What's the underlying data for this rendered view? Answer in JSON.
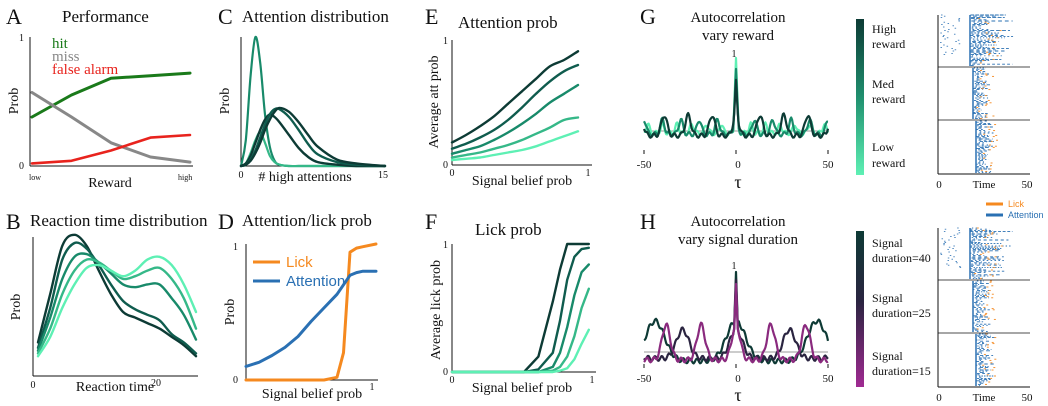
{
  "colors": {
    "hit": "#1a7a1a",
    "miss": "#888888",
    "false_alarm": "#e8231d",
    "lick": "#f5891f",
    "attention": "#2a70b3",
    "teal_ramp": [
      "#0d3b35",
      "#0f5c4e",
      "#188a6a",
      "#35b888",
      "#5ef0b4"
    ],
    "purple_ramp": [
      "#0e3a35",
      "#2a2440",
      "#8a2a7e"
    ]
  },
  "figure": {
    "panels": {
      "A": {
        "letter": "A",
        "title": "Performance",
        "xlabel": "Reward",
        "ylabel": "Prob",
        "ytick_top": "1",
        "ytick_bottom": "0",
        "xtick_left": "low",
        "xtick_right": "high"
      },
      "B": {
        "letter": "B",
        "title": "Reaction time distribution",
        "xlabel": "Reaction time",
        "ylabel": "Prob",
        "xtick_0": "0",
        "xtick_20": "20"
      },
      "C": {
        "letter": "C",
        "title": "Attention distribution",
        "xlabel": "# high attentions",
        "ylabel": "Prob",
        "xtick_0": "0",
        "xtick_15": "15"
      },
      "D": {
        "letter": "D",
        "title": "Attention/lick prob",
        "xlabel": "Signal belief prob",
        "ylabel": "Prob",
        "ytick_top": "1",
        "ytick_bottom": "0",
        "xtick_1": "1"
      },
      "E": {
        "letter": "E",
        "title": "Attention prob",
        "xlabel": "Signal belief prob",
        "ylabel": "Average att prob",
        "ytick_top": "1",
        "ytick_bottom": "0",
        "xtick_0": "0",
        "xtick_1": "1"
      },
      "F": {
        "letter": "F",
        "title": "Lick prob",
        "xlabel": "Signal belief prob",
        "ylabel": "Average lick prob",
        "ytick_top": "1",
        "ytick_bottom": "0",
        "xtick_0": "0",
        "xtick_1": "1"
      },
      "G": {
        "letter": "G",
        "title_1": "Autocorrelation",
        "title_2": "vary reward",
        "xlabel": "τ",
        "ytick_top": "1",
        "xtick_m50": "-50",
        "xtick_0": "0",
        "xtick_50": "50",
        "legend": [
          {
            "line1": "High",
            "line2": "reward"
          },
          {
            "line1": "Med",
            "line2": "reward"
          },
          {
            "line1": "Low",
            "line2": "reward"
          }
        ]
      },
      "H": {
        "letter": "H",
        "title_1": "Autocorrelation",
        "title_2": "vary signal duration",
        "xlabel": "τ",
        "ytick_top": "1",
        "xtick_m50": "-50",
        "xtick_0": "0",
        "xtick_50": "50",
        "legend": [
          {
            "line1": "Signal",
            "line2": "duration=40"
          },
          {
            "line1": "Signal",
            "line2": "duration=25"
          },
          {
            "line1": "Signal",
            "line2": "duration=15"
          }
        ]
      },
      "raster_G": {
        "xlabel": "Time",
        "xtick_0": "0",
        "xtick_50": "50"
      },
      "raster_H": {
        "xlabel": "Time",
        "xtick_0": "0",
        "xtick_50": "50",
        "legend": [
          {
            "label": "Lick"
          },
          {
            "label": "Attention"
          }
        ]
      }
    }
  },
  "chart_data": [
    {
      "panel": "A",
      "type": "line",
      "title": "Performance",
      "xlabel": "Reward",
      "ylabel": "Prob",
      "x": [
        0,
        0.25,
        0.5,
        0.75,
        1.0
      ],
      "ylim": [
        0,
        1
      ],
      "series": [
        {
          "name": "hit",
          "values": [
            0.38,
            0.55,
            0.68,
            0.7,
            0.72
          ]
        },
        {
          "name": "miss",
          "values": [
            0.57,
            0.38,
            0.18,
            0.07,
            0.03
          ]
        },
        {
          "name": "false alarm",
          "values": [
            0.02,
            0.04,
            0.12,
            0.22,
            0.24
          ]
        }
      ]
    },
    {
      "panel": "B",
      "type": "line",
      "title": "Reaction time distribution",
      "xlabel": "Reaction time",
      "ylabel": "Prob",
      "x": [
        0,
        2,
        4,
        6,
        8,
        10,
        12,
        14,
        16,
        18,
        20,
        22,
        24,
        26
      ],
      "xlim": [
        0,
        28
      ],
      "series": [
        {
          "values": [
            0.2,
            0.55,
            0.9,
            0.98,
            0.9,
            0.72,
            0.55,
            0.42,
            0.38,
            0.34,
            0.3,
            0.24,
            0.18,
            0.1
          ]
        },
        {
          "values": [
            0.16,
            0.45,
            0.8,
            0.92,
            0.88,
            0.76,
            0.62,
            0.5,
            0.44,
            0.4,
            0.36,
            0.26,
            0.2,
            0.12
          ]
        },
        {
          "values": [
            0.14,
            0.38,
            0.66,
            0.82,
            0.84,
            0.78,
            0.7,
            0.62,
            0.6,
            0.62,
            0.62,
            0.52,
            0.4,
            0.22
          ]
        },
        {
          "values": [
            0.12,
            0.3,
            0.55,
            0.72,
            0.8,
            0.78,
            0.72,
            0.66,
            0.68,
            0.72,
            0.74,
            0.66,
            0.52,
            0.3
          ]
        },
        {
          "values": [
            0.1,
            0.24,
            0.45,
            0.62,
            0.74,
            0.76,
            0.72,
            0.68,
            0.72,
            0.8,
            0.82,
            0.76,
            0.62,
            0.42
          ]
        }
      ]
    },
    {
      "panel": "C",
      "type": "line",
      "title": "Attention distribution",
      "xlabel": "# high attentions",
      "ylabel": "Prob",
      "x": [
        0,
        0.5,
        1,
        1.5,
        2,
        2.5,
        3,
        3.5,
        4,
        5,
        6,
        7,
        8,
        10,
        12,
        15
      ],
      "xlim": [
        0,
        15
      ],
      "series": [
        {
          "values": [
            0.0,
            0.2,
            0.7,
            1.0,
            0.8,
            0.4,
            0.15,
            0.04,
            0.01,
            0,
            0,
            0,
            0,
            0,
            0,
            0
          ]
        },
        {
          "values": [
            0.0,
            0.02,
            0.1,
            0.2,
            0.26,
            0.18,
            0.08,
            0.03,
            0.01,
            0,
            0,
            0,
            0,
            0,
            0,
            0
          ]
        },
        {
          "values": [
            0.0,
            0.02,
            0.08,
            0.18,
            0.28,
            0.36,
            0.4,
            0.38,
            0.34,
            0.24,
            0.14,
            0.07,
            0.03,
            0.01,
            0,
            0
          ]
        },
        {
          "values": [
            0.0,
            0.01,
            0.05,
            0.12,
            0.22,
            0.32,
            0.4,
            0.44,
            0.44,
            0.38,
            0.28,
            0.17,
            0.09,
            0.03,
            0.01,
            0
          ]
        },
        {
          "values": [
            0.0,
            0.01,
            0.04,
            0.1,
            0.18,
            0.28,
            0.36,
            0.42,
            0.45,
            0.42,
            0.34,
            0.24,
            0.15,
            0.05,
            0.02,
            0
          ]
        }
      ]
    },
    {
      "panel": "D",
      "type": "line",
      "title": "Attention/lick prob",
      "xlabel": "Signal belief prob",
      "ylabel": "Prob",
      "x": [
        0,
        0.1,
        0.2,
        0.3,
        0.4,
        0.5,
        0.6,
        0.7,
        0.75,
        0.8,
        0.85,
        0.9,
        1.0
      ],
      "ylim": [
        0,
        1
      ],
      "series": [
        {
          "name": "Lick",
          "values": [
            0,
            0,
            0,
            0,
            0,
            0,
            0,
            0.02,
            0.2,
            0.94,
            0.97,
            0.98,
            1.0
          ]
        },
        {
          "name": "Attention",
          "values": [
            0.1,
            0.13,
            0.18,
            0.24,
            0.32,
            0.43,
            0.53,
            0.63,
            0.7,
            0.77,
            0.79,
            0.8,
            0.8
          ]
        }
      ]
    },
    {
      "panel": "E",
      "type": "line",
      "title": "Attention prob",
      "xlabel": "Signal belief prob",
      "ylabel": "Average att prob",
      "x": [
        0,
        0.1,
        0.2,
        0.3,
        0.4,
        0.5,
        0.6,
        0.7,
        0.8,
        0.9
      ],
      "ylim": [
        0,
        1
      ],
      "series": [
        {
          "values": [
            0.18,
            0.24,
            0.31,
            0.39,
            0.49,
            0.59,
            0.69,
            0.79,
            0.84,
            0.91
          ]
        },
        {
          "values": [
            0.13,
            0.17,
            0.22,
            0.28,
            0.36,
            0.46,
            0.57,
            0.67,
            0.75,
            0.8
          ]
        },
        {
          "values": [
            0.09,
            0.12,
            0.15,
            0.2,
            0.26,
            0.33,
            0.41,
            0.5,
            0.57,
            0.64
          ]
        },
        {
          "values": [
            0.06,
            0.08,
            0.1,
            0.13,
            0.16,
            0.2,
            0.25,
            0.3,
            0.36,
            0.38
          ]
        },
        {
          "values": [
            0.04,
            0.05,
            0.06,
            0.08,
            0.1,
            0.12,
            0.15,
            0.19,
            0.23,
            0.27
          ]
        }
      ]
    },
    {
      "panel": "F",
      "type": "line",
      "title": "Lick prob",
      "xlabel": "Signal belief prob",
      "ylabel": "Average lick prob",
      "x": [
        0,
        0.1,
        0.2,
        0.3,
        0.4,
        0.5,
        0.6,
        0.7,
        0.75,
        0.8,
        0.85,
        0.9,
        0.95
      ],
      "ylim": [
        0,
        1
      ],
      "series": [
        {
          "values": [
            0,
            0,
            0,
            0,
            0,
            0,
            0.12,
            0.55,
            0.8,
            1.0,
            1.0,
            1.0,
            1.0
          ]
        },
        {
          "values": [
            0,
            0,
            0,
            0,
            0,
            0,
            0.02,
            0.15,
            0.4,
            0.72,
            0.9,
            0.96,
            0.97
          ]
        },
        {
          "values": [
            0,
            0,
            0,
            0,
            0,
            0,
            0,
            0.04,
            0.15,
            0.35,
            0.6,
            0.78,
            0.84
          ]
        },
        {
          "values": [
            0,
            0,
            0,
            0,
            0,
            0,
            0,
            0.01,
            0.04,
            0.12,
            0.28,
            0.5,
            0.65
          ]
        },
        {
          "values": [
            0,
            0,
            0,
            0,
            0,
            0,
            0,
            0,
            0.01,
            0.03,
            0.1,
            0.22,
            0.33
          ]
        }
      ]
    },
    {
      "panel": "G",
      "type": "line",
      "title": "Autocorrelation vary reward",
      "xlabel": "τ",
      "xlim": [
        -50,
        50
      ],
      "ylim": [
        -0.15,
        1.0
      ],
      "series": [
        {
          "name": "High reward",
          "period": 8,
          "amp": 0.06,
          "peak": 1.0
        },
        {
          "name": "Med reward",
          "period": 10,
          "amp": 0.1,
          "peak": 0.85
        },
        {
          "name": "Low reward",
          "period": 13,
          "amp": 0.14,
          "peak": 0.7
        }
      ]
    },
    {
      "panel": "H",
      "type": "line",
      "title": "Autocorrelation vary signal duration",
      "xlabel": "τ",
      "xlim": [
        -50,
        50
      ],
      "ylim": [
        -0.15,
        1.0
      ],
      "series": [
        {
          "name": "Signal duration=40",
          "period": 44,
          "amp": 0.25,
          "peak": 1.0
        },
        {
          "name": "Signal duration=25",
          "period": 29,
          "amp": 0.18,
          "peak": 0.9
        },
        {
          "name": "Signal duration=15",
          "period": 19,
          "amp": 0.22,
          "peak": 0.85
        }
      ]
    }
  ]
}
